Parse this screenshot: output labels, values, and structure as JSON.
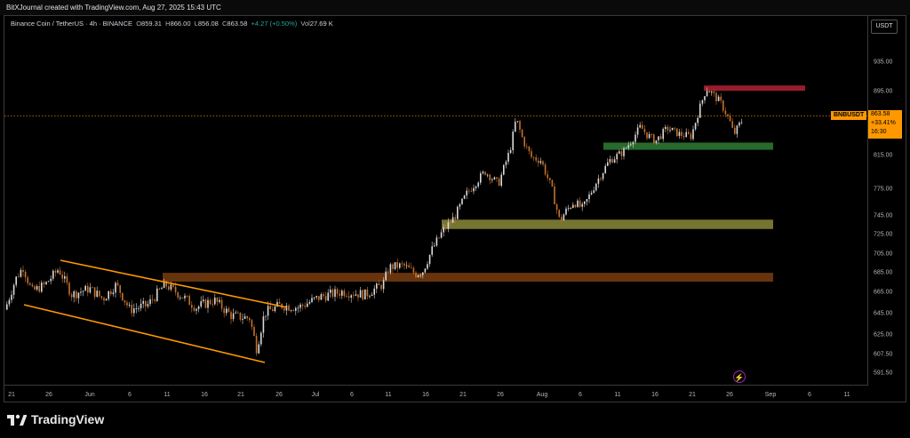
{
  "header": {
    "attribution": "BitXJournal created with TradingView.com, Aug 27, 2025 15:43 UTC"
  },
  "legend": {
    "symbol_desc": "Binance Coin / TetherUS · 4h · BINANCE",
    "open_label": "O",
    "open": "859.31",
    "high_label": "H",
    "high": "866.00",
    "low_label": "L",
    "low": "856.08",
    "close_label": "C",
    "close": "863.58",
    "change": "+4.27 (+0.50%)",
    "volume_label": "Vol",
    "volume": "27.69 K"
  },
  "price_axis": {
    "currency": "USDT",
    "ticks": [
      "935.00",
      "895.00",
      "815.00",
      "775.00",
      "745.00",
      "725.00",
      "705.00",
      "685.00",
      "665.00",
      "645.00",
      "625.00",
      "607.50",
      "591.50"
    ]
  },
  "time_axis": {
    "labels": [
      "21",
      "26",
      "Jun",
      "6",
      "11",
      "16",
      "21",
      "26",
      "Jul",
      "6",
      "11",
      "16",
      "21",
      "26",
      "Aug",
      "6",
      "11",
      "16",
      "21",
      "26",
      "Sep",
      "6",
      "11"
    ]
  },
  "last_price": {
    "ticker": "BNBUSDT",
    "price": "863.58",
    "change_pct": "+33.41%",
    "countdown": "16:30",
    "value": 863.58
  },
  "zones": [
    {
      "name": "resistance-zone-red",
      "color": "#b22234",
      "from": 897,
      "to": 902
    },
    {
      "name": "support-zone-green",
      "color": "#2e7d32",
      "from": 821,
      "to": 830
    },
    {
      "name": "support-zone-yellow",
      "color": "#8a8a3a",
      "from": 730,
      "to": 740
    },
    {
      "name": "support-zone-brown",
      "color": "#7a3d10",
      "from": 675,
      "to": 684
    }
  ],
  "colors": {
    "accent": "#ff9800",
    "candle_up": "#d9d9d9",
    "candle_down": "#c6712b",
    "channel": "#ff9800"
  },
  "footer": {
    "brand": "TradingView"
  },
  "icons": {
    "logo": "tradingview-logo-icon",
    "lightning": "lightning-icon"
  }
}
